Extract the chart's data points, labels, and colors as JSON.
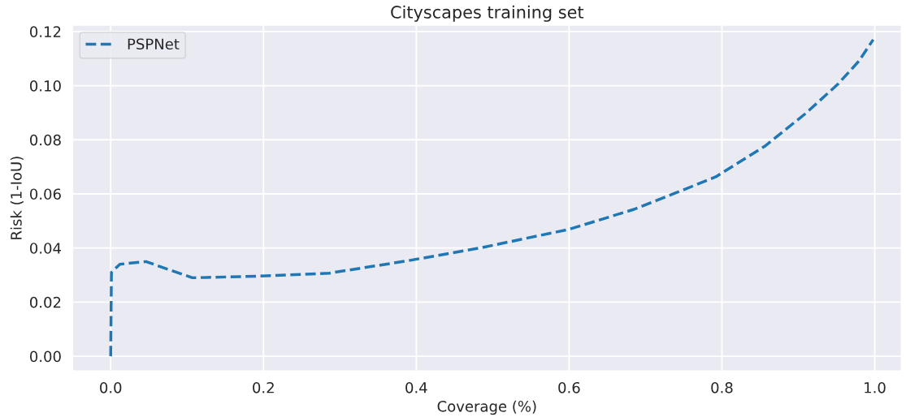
{
  "chart_data": {
    "type": "line",
    "title": "Cityscapes training set",
    "xlabel": "Coverage (%)",
    "ylabel": "Risk (1-IoU)",
    "series": [
      {
        "name": "PSPNet",
        "color": "#1f77b4",
        "line_style": "dashed",
        "x": [
          0,
          0.001,
          0.012,
          0.046,
          0.107,
          0.195,
          0.286,
          0.387,
          0.483,
          0.6,
          0.685,
          0.739,
          0.792,
          0.856,
          0.909,
          0.952,
          0.979,
          0.998
        ],
        "values": [
          0,
          0.031,
          0.034,
          0.035,
          0.029,
          0.0296,
          0.0307,
          0.0352,
          0.04,
          0.0469,
          0.0543,
          0.0603,
          0.0663,
          0.0776,
          0.0896,
          0.1006,
          0.109,
          0.117
        ]
      }
    ],
    "xlim": [
      -0.05,
      1.035
    ],
    "ylim": [
      -0.0055,
      0.1224
    ],
    "xticks": [
      {
        "value": 0,
        "label": "0.0"
      },
      {
        "value": 0.2,
        "label": "0.2"
      },
      {
        "value": 0.4,
        "label": "0.4"
      },
      {
        "value": 0.6,
        "label": "0.6"
      },
      {
        "value": 0.8,
        "label": "0.8"
      },
      {
        "value": 1,
        "label": "1.0"
      }
    ],
    "yticks": [
      {
        "value": 0,
        "label": "0.00"
      },
      {
        "value": 0.02,
        "label": "0.02"
      },
      {
        "value": 0.04,
        "label": "0.04"
      },
      {
        "value": 0.06,
        "label": "0.06"
      },
      {
        "value": 0.08,
        "label": "0.08"
      },
      {
        "value": 0.1,
        "label": "0.10"
      },
      {
        "value": 0.12,
        "label": "0.12"
      }
    ],
    "grid": true,
    "legend": "top left"
  }
}
